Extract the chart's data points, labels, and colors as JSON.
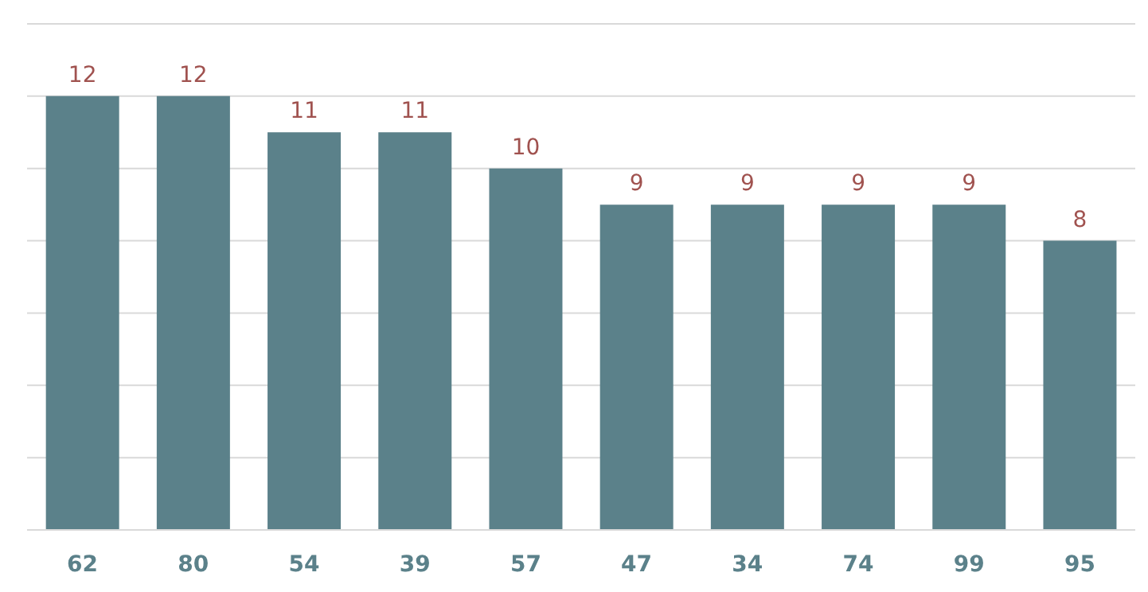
{
  "chart_data": {
    "type": "bar",
    "categories": [
      "62",
      "80",
      "54",
      "39",
      "57",
      "47",
      "34",
      "74",
      "99",
      "95"
    ],
    "values": [
      12,
      12,
      11,
      11,
      10,
      9,
      9,
      9,
      9,
      8
    ],
    "color": "#5b818a",
    "ylim": [
      0,
      14
    ],
    "yticks": [
      {
        "value": 0,
        "label": null
      },
      {
        "value": 2,
        "label": null
      },
      {
        "value": 4,
        "label": null
      },
      {
        "value": 6,
        "label": null
      },
      {
        "value": 8,
        "label": null
      },
      {
        "value": 10,
        "label": null
      },
      {
        "value": 12,
        "label": null
      },
      {
        "value": 14,
        "label": null
      }
    ],
    "grid": "y",
    "tick_labels": "x",
    "data_labels": true
  }
}
